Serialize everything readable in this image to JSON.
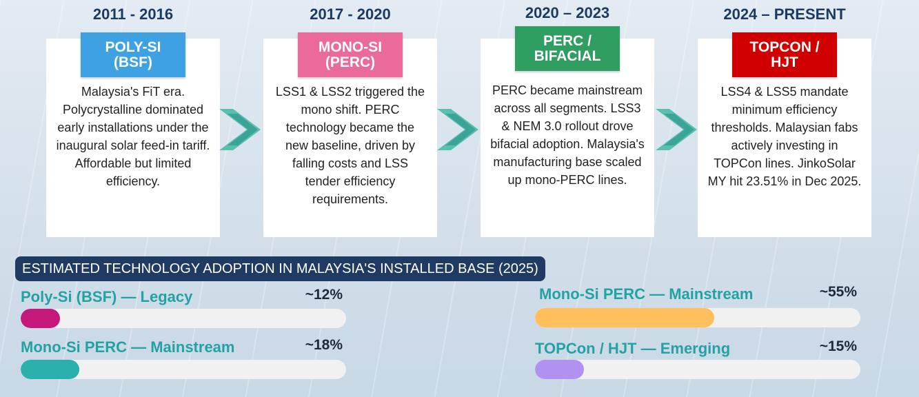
{
  "timeline": [
    {
      "period": "2011 - 2016",
      "badge": [
        "POLY-SI",
        "(BSF)"
      ],
      "badge_color": "#3ea2e2",
      "text": "Malaysia's FiT era. Polycrystalline dominated early installations under the inaugural solar feed-in tariff. Affordable but limited efficiency."
    },
    {
      "period": "2017 - 2020",
      "badge": [
        "MONO-SI",
        "(PERC)"
      ],
      "badge_color": "#ea6a9c",
      "text": "LSS1 & LSS2 triggered the mono shift. PERC technology became the new baseline, driven by falling costs and LSS tender efficiency requirements."
    },
    {
      "period": "2020 – 2023",
      "badge": [
        "PERC /",
        "BIFACIAL"
      ],
      "badge_color": "#2f9e60",
      "text": "PERC became mainstream across all segments. LSS3 & NEM 3.0 rollout drove bifacial adoption. Malaysia's manufacturing base scaled up mono-PERC lines."
    },
    {
      "period": "2024 – PRESENT",
      "badge": [
        "TOPCON /",
        "HJT"
      ],
      "badge_color": "#d10000",
      "text": "LSS4 & LSS5 mandate minimum efficiency thresholds. Malaysian fabs actively investing in TOPCon lines. JinkoSolar MY hit 23.51% in Dec 2025."
    }
  ],
  "adoption": {
    "title": "ESTIMATED TECHNOLOGY ADOPTION IN MALAYSIA'S INSTALLED BASE (2025)",
    "bars": [
      {
        "label": "Poly-Si (BSF) — Legacy",
        "value": 12,
        "value_label": "~12%",
        "color": "#c4197b"
      },
      {
        "label": "Mono-Si PERC — Mainstream",
        "value": 18,
        "value_label": "~18%",
        "color": "#2bb0ad"
      },
      {
        "label": "Mono-Si PERC — Mainstream",
        "value": 55,
        "value_label": "~55%",
        "color": "#ffbf5a"
      },
      {
        "label": "TOPCon / HJT — Emerging",
        "value": 15,
        "value_label": "~15%",
        "color": "#b292f0"
      }
    ]
  }
}
